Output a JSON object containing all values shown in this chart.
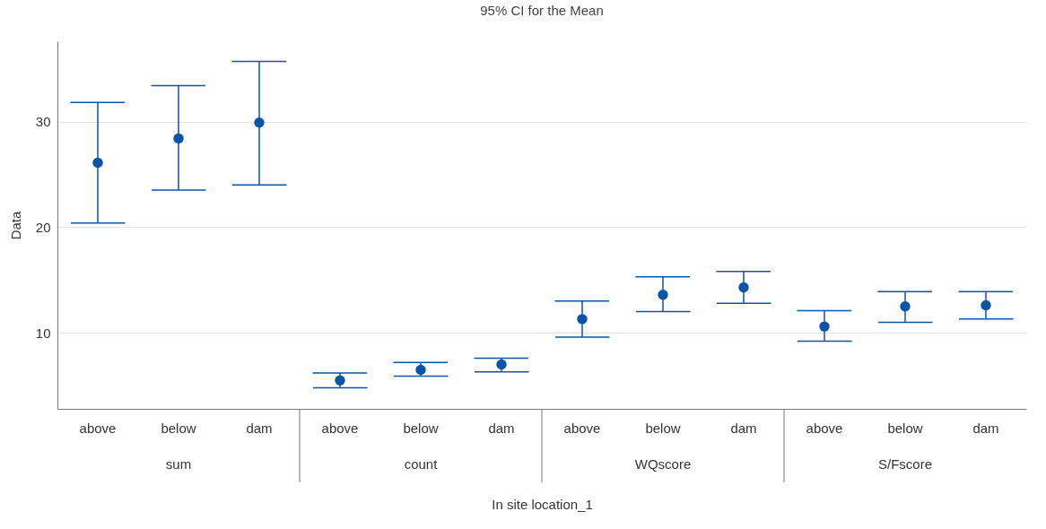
{
  "chart_data": {
    "type": "scatter",
    "title": "95% CI for the Mean",
    "xlabel": "In site location_1",
    "ylabel": "Data",
    "categories": [
      "above",
      "below",
      "dam",
      "above",
      "below",
      "dam",
      "above",
      "below",
      "dam",
      "above",
      "below",
      "dam"
    ],
    "annotations": [
      "sum",
      "count",
      "WQscore",
      "S/Fscore"
    ],
    "series": [
      {
        "color": "#0b55a8",
        "values": [
          26.1,
          28.4,
          29.9,
          5.5,
          6.5,
          7.0,
          11.3,
          13.6,
          14.3,
          10.6,
          12.5,
          12.6
        ],
        "errors": [
          [
            20.4,
            31.8
          ],
          [
            23.5,
            33.4
          ],
          [
            24.0,
            35.7
          ],
          [
            4.8,
            6.2
          ],
          [
            5.9,
            7.2
          ],
          [
            6.3,
            7.6
          ],
          [
            9.6,
            13.0
          ],
          [
            12.0,
            15.3
          ],
          [
            12.8,
            15.8
          ],
          [
            9.2,
            12.1
          ],
          [
            11.0,
            13.9
          ],
          [
            11.3,
            13.9
          ]
        ]
      }
    ],
    "ylim": [
      2.8,
      37.6
    ],
    "yticks": [
      10,
      20,
      30
    ],
    "grid": "y",
    "marker": "circle"
  }
}
